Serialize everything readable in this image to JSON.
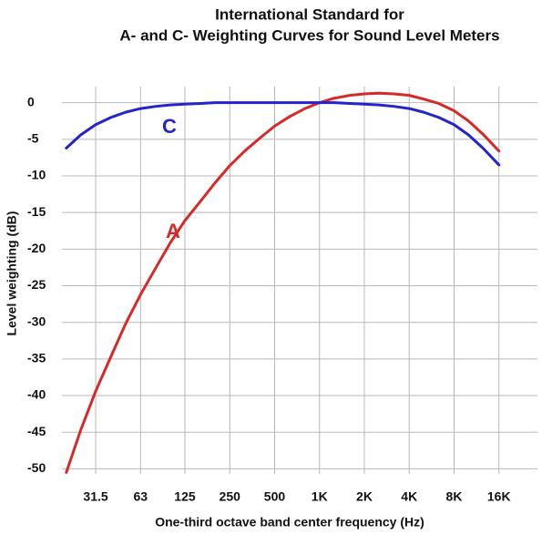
{
  "chart_data": {
    "type": "line",
    "title": [
      "International Standard for",
      "A- and C- Weighting Curves for Sound Level Meters"
    ],
    "x_label": "One-third octave band center frequency (Hz)",
    "y_label": "Level weighting (dB)",
    "x": [
      20,
      25,
      31.5,
      40,
      50,
      63,
      80,
      100,
      125,
      160,
      200,
      250,
      315,
      400,
      500,
      630,
      800,
      1000,
      1250,
      1600,
      2000,
      2500,
      3150,
      4000,
      5000,
      6300,
      8000,
      10000,
      12500,
      16000
    ],
    "series": [
      {
        "name": "A",
        "color": "#d62a2a",
        "values": [
          -50.5,
          -44.7,
          -39.4,
          -34.6,
          -30.2,
          -26.2,
          -22.5,
          -19.1,
          -16.1,
          -13.4,
          -10.9,
          -8.6,
          -6.6,
          -4.8,
          -3.2,
          -1.9,
          -0.8,
          0,
          0.6,
          1.0,
          1.2,
          1.3,
          1.2,
          1.0,
          0.5,
          -0.1,
          -1.1,
          -2.5,
          -4.3,
          -6.6
        ]
      },
      {
        "name": "C",
        "color": "#2424c8",
        "values": [
          -6.2,
          -4.4,
          -3.0,
          -2.0,
          -1.3,
          -0.8,
          -0.5,
          -0.3,
          -0.2,
          -0.1,
          0,
          0,
          0,
          0,
          0,
          0,
          0,
          0,
          0,
          -0.1,
          -0.2,
          -0.3,
          -0.5,
          -0.8,
          -1.3,
          -2.0,
          -3.0,
          -4.4,
          -6.2,
          -8.5
        ]
      }
    ],
    "xscale": "log",
    "xlim": [
      18.7,
      29000
    ],
    "ylim": [
      -50.7,
      2.2
    ],
    "xticks": [
      31.5,
      63,
      125,
      250,
      500,
      {
        "value": 1000,
        "label": "1K"
      },
      {
        "value": 2000,
        "label": "2K"
      },
      {
        "value": 4000,
        "label": "4K"
      },
      {
        "value": 8000,
        "label": "8K"
      },
      {
        "value": 16000,
        "label": "16K"
      }
    ],
    "yticks": [
      0,
      -5,
      -10,
      -15,
      -20,
      -25,
      -30,
      -35,
      -40,
      -45,
      -50
    ],
    "grid": true
  }
}
